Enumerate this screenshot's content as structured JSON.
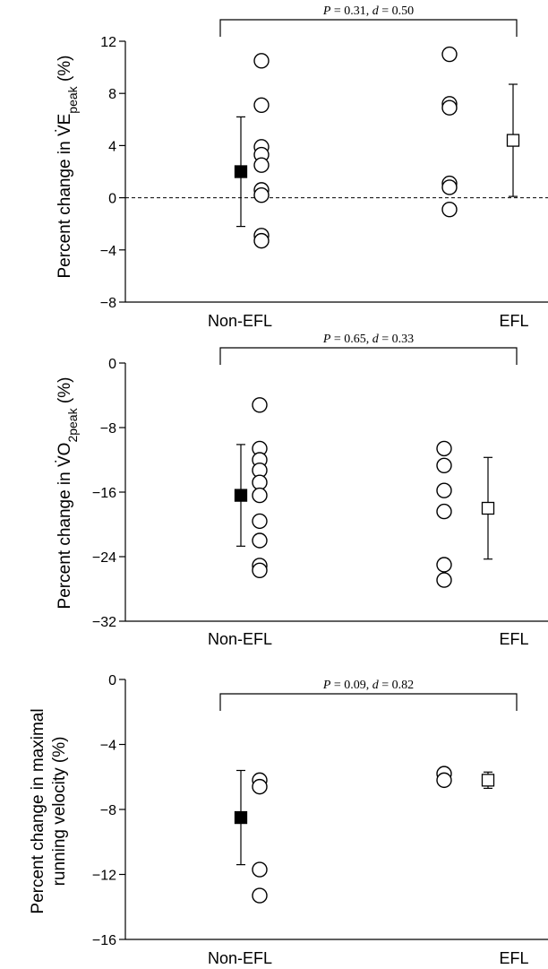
{
  "chart_data": [
    {
      "type": "scatter",
      "ylabel_prefix": "Percent change in ",
      "ylabel_symbol": "V̇E",
      "ylabel_sub": "peak",
      "ylabel_suffix": " (%)",
      "ylim": [
        -8,
        12
      ],
      "yticks": [
        -8,
        -4,
        0,
        4,
        8,
        12
      ],
      "ytick_labels": [
        "−8",
        "−4",
        "0",
        "4",
        "8",
        "12"
      ],
      "zero_line": true,
      "categories": [
        "Non-EFL",
        "EFL"
      ],
      "stat_P": "0.31",
      "stat_d": "0.50",
      "groups": [
        {
          "mean": 2.0,
          "sd": 4.2,
          "marker": "filled-square",
          "individuals": [
            10.5,
            7.1,
            3.9,
            3.3,
            2.5,
            0.6,
            0.2,
            -2.9,
            -3.3
          ]
        },
        {
          "mean": 4.4,
          "sd": 4.3,
          "marker": "open-square",
          "individuals": [
            11.0,
            7.2,
            6.9,
            1.1,
            0.8,
            -0.9
          ]
        }
      ]
    },
    {
      "type": "scatter",
      "ylabel_prefix": "Percent change in ",
      "ylabel_symbol": "V̇O",
      "ylabel_sub": "2peak",
      "ylabel_suffix": " (%)",
      "ylim": [
        -32,
        0
      ],
      "yticks": [
        -32,
        -24,
        -16,
        -8,
        0
      ],
      "ytick_labels": [
        "−32",
        "−24",
        "−16",
        "−8",
        "0"
      ],
      "zero_line": false,
      "categories": [
        "Non-EFL",
        "EFL"
      ],
      "stat_P": "0.65",
      "stat_d": "0.33",
      "groups": [
        {
          "mean": -16.4,
          "sd": 6.3,
          "marker": "filled-square",
          "individuals": [
            -5.2,
            -10.6,
            -12.0,
            -13.3,
            -14.8,
            -16.4,
            -19.6,
            -22.0,
            -25.1,
            -25.7
          ]
        },
        {
          "mean": -18.0,
          "sd": 6.3,
          "marker": "open-square",
          "individuals": [
            -10.6,
            -12.7,
            -15.8,
            -18.4,
            -25.0,
            -26.9
          ]
        }
      ]
    },
    {
      "type": "scatter",
      "ylabel_line1": "Percent change in maximal",
      "ylabel_line2": "running velocity (%)",
      "ylim": [
        -16,
        0
      ],
      "yticks": [
        -16,
        -12,
        -8,
        -4,
        0
      ],
      "ytick_labels": [
        "−16",
        "−12",
        "−8",
        "−4",
        "0"
      ],
      "zero_line": false,
      "categories": [
        "Non-EFL",
        "EFL"
      ],
      "stat_P": "0.09",
      "stat_d": "0.82",
      "groups": [
        {
          "mean": -8.5,
          "sd": 2.9,
          "marker": "filled-square",
          "individuals": [
            -6.2,
            -6.6,
            -11.7,
            -13.3
          ]
        },
        {
          "mean": -6.2,
          "sd": 0.5,
          "marker": "open-square",
          "individuals": [
            -5.8,
            -6.2
          ]
        }
      ]
    }
  ]
}
